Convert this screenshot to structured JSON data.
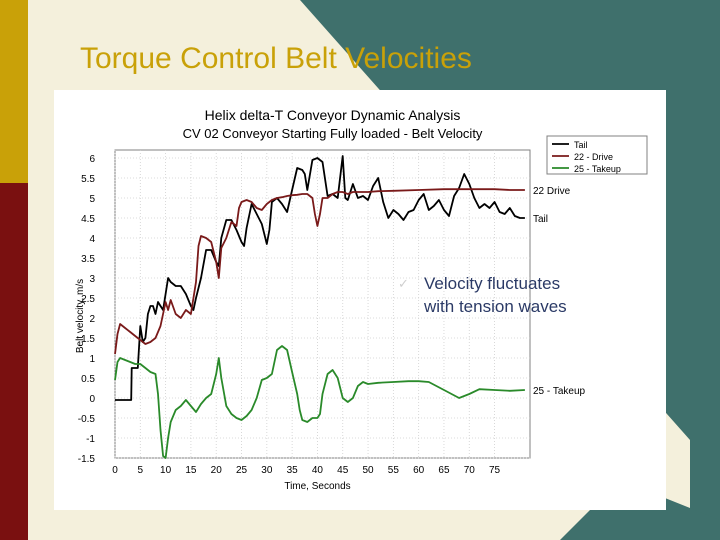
{
  "slide": {
    "title": "Torque Control Belt Velocities",
    "bullet": [
      "Velocity fluctuates",
      "with tension waves"
    ]
  },
  "colors": {
    "title": "#c9a108",
    "tail": "#000000",
    "drive": "#7a1a1a",
    "takeup": "#2a8a2a"
  },
  "chart_data": {
    "type": "line",
    "title": "Helix delta-T Conveyor Dynamic Analysis",
    "subtitle": "CV 02 Conveyor Starting Fully loaded - Belt Velocity",
    "xlabel": "Time, Seconds",
    "ylabel": "Belt velocity, m/s",
    "xlim": [
      0,
      82
    ],
    "ylim": [
      -1.5,
      6.2
    ],
    "grid": true,
    "legend_placement": "top-right",
    "x_ticks": [
      "0",
      "5",
      "10",
      "15",
      "20",
      "25",
      "30",
      "35",
      "40",
      "45",
      "50",
      "55",
      "60",
      "65",
      "70",
      "75"
    ],
    "x_tick_values": [
      0,
      5,
      10,
      15,
      20,
      25,
      30,
      35,
      40,
      45,
      50,
      55,
      60,
      65,
      70,
      75
    ],
    "y_ticks": [
      "6",
      "5.5",
      "5",
      "4.5",
      "4",
      "3.5",
      "3",
      "2.5",
      "2",
      "1.5",
      "1",
      "0.5",
      "0",
      "-0.5",
      "-1",
      "-1.5"
    ],
    "y_tick_values": [
      6,
      5.5,
      5,
      4.5,
      4,
      3.5,
      3,
      2.5,
      2,
      1.5,
      1,
      0.5,
      0,
      -0.5,
      -1,
      -1.5
    ],
    "series": [
      {
        "name": "Tail",
        "end_label": "Tail",
        "x": [
          0,
          3.2,
          3.3,
          4.5,
          5,
          5.5,
          6,
          6.5,
          7,
          7.5,
          8,
          8.5,
          9,
          9.5,
          10,
          10.5,
          11,
          12,
          13,
          14,
          15,
          15.5,
          16,
          17,
          18,
          19,
          20,
          20.5,
          21,
          22,
          23,
          24,
          25,
          25.5,
          26,
          27,
          28,
          29,
          30,
          30.5,
          31,
          32,
          33,
          34,
          35,
          36,
          37,
          37.5,
          38,
          39,
          40,
          41,
          42,
          43,
          44,
          45,
          45.5,
          46,
          47,
          48,
          49,
          50,
          51,
          52,
          53,
          54,
          55,
          56,
          57,
          58,
          59,
          60,
          61,
          62,
          63,
          64,
          65,
          66,
          67,
          68,
          69,
          70,
          71,
          72,
          73,
          74,
          75,
          76,
          77,
          78,
          79,
          80,
          81
        ],
        "values": [
          -0.05,
          -0.05,
          0.75,
          0.75,
          1.8,
          1.4,
          1.5,
          2.1,
          2.3,
          2.3,
          2.1,
          2.4,
          2.3,
          2.2,
          2.6,
          3.0,
          2.9,
          2.8,
          2.8,
          2.6,
          2.3,
          2.2,
          2.5,
          3.0,
          3.7,
          3.7,
          3.4,
          3.3,
          4.0,
          4.45,
          4.45,
          4.2,
          3.9,
          3.8,
          4.25,
          4.85,
          4.6,
          4.35,
          3.85,
          4.2,
          4.9,
          5.0,
          4.85,
          4.65,
          5.2,
          5.75,
          5.7,
          5.6,
          5.2,
          5.95,
          6.0,
          5.9,
          5.05,
          5.1,
          5.0,
          6.05,
          5.0,
          4.95,
          5.35,
          5.0,
          5.05,
          4.95,
          5.3,
          5.5,
          4.9,
          4.5,
          4.7,
          4.6,
          4.45,
          4.65,
          4.7,
          4.95,
          5.1,
          4.7,
          4.8,
          4.95,
          4.7,
          4.55,
          5.05,
          5.25,
          5.6,
          5.35,
          5.0,
          4.75,
          4.85,
          4.75,
          4.9,
          4.65,
          4.6,
          4.75,
          4.55,
          4.5,
          4.5
        ]
      },
      {
        "name": "22 - Drive",
        "end_label": "22  Drive",
        "x": [
          0,
          0.5,
          1,
          2,
          3,
          4,
          5,
          6,
          7,
          8,
          9,
          10,
          10.5,
          11,
          12,
          13,
          14,
          15,
          16,
          16.5,
          17,
          18,
          19,
          20,
          20.5,
          21,
          22,
          23,
          24,
          24.5,
          25,
          26,
          27,
          28,
          29,
          30,
          31,
          32,
          33,
          34,
          35,
          36,
          37,
          38,
          39,
          39.5,
          40,
          40.5,
          41,
          42,
          43,
          44,
          45,
          46,
          47,
          48,
          49,
          50,
          52,
          55,
          60,
          65,
          70,
          75,
          78,
          81
        ],
        "values": [
          1.1,
          1.6,
          1.85,
          1.75,
          1.65,
          1.55,
          1.45,
          1.35,
          1.4,
          1.5,
          1.8,
          2.4,
          2.2,
          2.45,
          2.1,
          2.0,
          2.2,
          2.1,
          2.9,
          3.8,
          4.05,
          4.0,
          3.9,
          3.4,
          3.0,
          3.75,
          4.0,
          4.4,
          4.3,
          4.75,
          4.9,
          4.95,
          4.9,
          4.75,
          4.7,
          4.85,
          4.95,
          5.0,
          5.02,
          5.05,
          5.07,
          5.08,
          5.1,
          5.1,
          5.0,
          4.6,
          4.3,
          4.6,
          5.0,
          5.0,
          5.1,
          5.15,
          5.15,
          5.1,
          5.15,
          5.15,
          5.15,
          5.15,
          5.17,
          5.18,
          5.2,
          5.22,
          5.22,
          5.22,
          5.2,
          5.2
        ]
      },
      {
        "name": "25 - Takeup",
        "end_label": "25 - Takeup",
        "x": [
          0,
          0.5,
          1,
          2,
          3,
          4,
          5,
          6,
          7,
          8,
          8.5,
          9,
          9.5,
          10,
          10.5,
          11,
          12,
          13,
          14,
          15,
          16,
          17,
          18,
          19,
          20,
          20.5,
          21,
          22,
          23,
          24,
          25,
          26,
          27,
          28,
          29,
          30,
          31,
          32,
          33,
          34,
          35,
          36,
          36.5,
          37,
          38,
          39,
          40,
          40.5,
          41,
          42,
          43,
          44,
          45,
          46,
          47,
          48,
          49,
          50,
          52,
          55,
          58,
          60,
          62,
          65,
          68,
          70,
          72,
          75,
          78,
          81
        ],
        "values": [
          0.45,
          0.9,
          1.0,
          0.95,
          0.9,
          0.85,
          0.85,
          0.75,
          0.65,
          0.6,
          0.1,
          -0.8,
          -1.45,
          -1.5,
          -1.0,
          -0.6,
          -0.3,
          -0.2,
          -0.05,
          -0.2,
          -0.35,
          -0.15,
          0.0,
          0.1,
          0.6,
          1.0,
          0.5,
          -0.2,
          -0.4,
          -0.5,
          -0.55,
          -0.45,
          -0.3,
          0.0,
          0.45,
          0.5,
          0.6,
          1.2,
          1.3,
          1.2,
          0.65,
          0.1,
          -0.3,
          -0.55,
          -0.6,
          -0.5,
          -0.5,
          -0.4,
          0.1,
          0.6,
          0.7,
          0.5,
          0.0,
          -0.1,
          0.0,
          0.3,
          0.4,
          0.35,
          0.38,
          0.4,
          0.42,
          0.42,
          0.4,
          0.2,
          0.0,
          0.1,
          0.22,
          0.2,
          0.18,
          0.2
        ]
      }
    ]
  }
}
